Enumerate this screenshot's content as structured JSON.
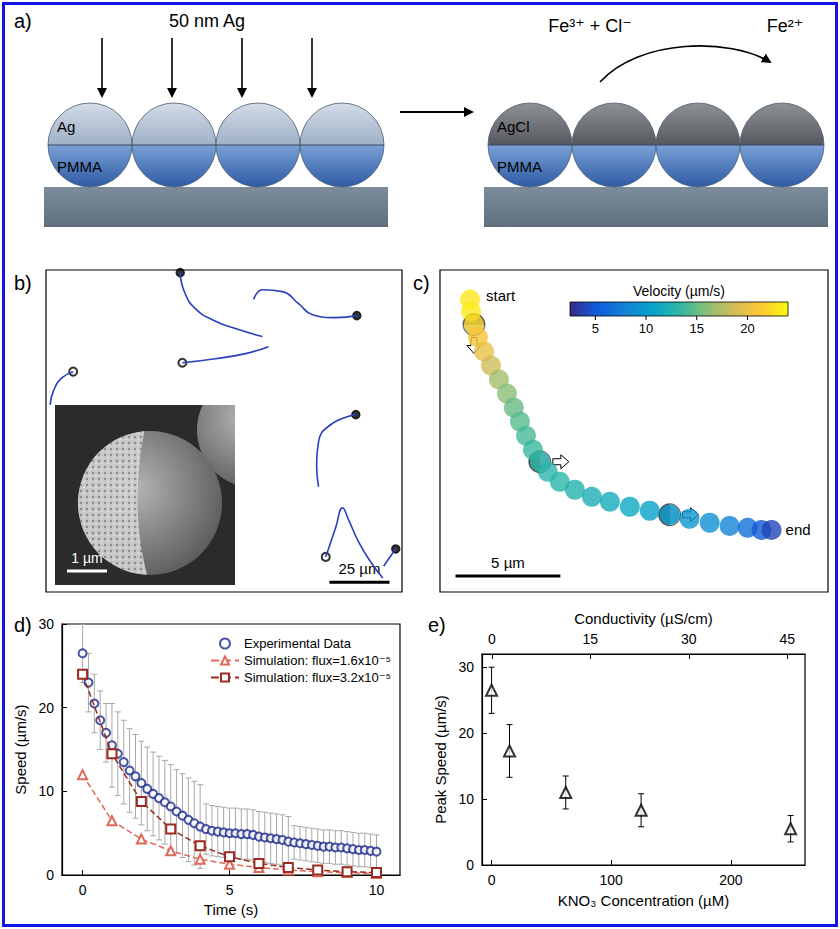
{
  "panel_a": {
    "letter": "a)",
    "deposition": "50 nm Ag",
    "before": {
      "cap": "Ag",
      "core": "PMMA"
    },
    "after": {
      "cap": "AgCl",
      "core": "PMMA"
    },
    "reaction": {
      "reactants": "Fe³⁺ + Cl⁻",
      "product": "Fe²⁺"
    }
  },
  "panel_b": {
    "letter": "b)",
    "xlim": [
      0,
      148
    ],
    "ylim": [
      0,
      134
    ],
    "tick_labels": false,
    "color": "#2a3fbf",
    "scale_bar": {
      "length": 25,
      "label": "25 µm"
    },
    "inset": {
      "scale_bar_label": "1 µm"
    },
    "trajectories": [
      {
        "marker": "filled",
        "points": [
          [
            90.0,
            106.3
          ],
          [
            80.0,
            109.2
          ],
          [
            70.0,
            112.9
          ],
          [
            62.1,
            117.9
          ],
          [
            57.5,
            125.0
          ],
          [
            55.8,
            132.9
          ]
        ]
      },
      {
        "marker": "open",
        "points": [
          [
            92.5,
            102.1
          ],
          [
            82.9,
            99.2
          ],
          [
            70.4,
            97.1
          ],
          [
            56.7,
            95.4
          ]
        ]
      },
      {
        "marker": "filled",
        "points": [
          [
            86.3,
            121.7
          ],
          [
            90.0,
            125.8
          ],
          [
            98.3,
            125.0
          ],
          [
            105.0,
            120.0
          ],
          [
            110.8,
            115.4
          ],
          [
            120.4,
            114.2
          ],
          [
            129.2,
            115.0
          ]
        ]
      },
      {
        "marker": "open",
        "points": [
          [
            1.7,
            77.9
          ],
          [
            3.3,
            84.2
          ],
          [
            6.7,
            89.2
          ],
          [
            11.3,
            91.7
          ]
        ]
      },
      {
        "marker": "filled",
        "points": [
          [
            113.3,
            43.8
          ],
          [
            112.5,
            52.9
          ],
          [
            113.3,
            62.5
          ],
          [
            118.3,
            69.6
          ],
          [
            128.8,
            73.8
          ]
        ]
      },
      {
        "marker": "open",
        "points": [
          [
            140.0,
            5.8
          ],
          [
            135.0,
            12.5
          ],
          [
            130.0,
            20.8
          ],
          [
            125.8,
            30.0
          ],
          [
            123.3,
            35.0
          ],
          [
            120.4,
            26.7
          ],
          [
            116.3,
            14.6
          ]
        ]
      },
      {
        "marker": "filled",
        "points": [
          [
            140.4,
            10.8
          ],
          [
            143.3,
            15.0
          ],
          [
            145.4,
            17.9
          ]
        ]
      }
    ]
  },
  "panel_c": {
    "letter": "c)",
    "xlim": [
      0,
      18.5
    ],
    "ylim": [
      0,
      15.3
    ],
    "tick_labels": false,
    "start_label": "start",
    "end_label": "end",
    "points": [
      [
        1.43,
        13.9
      ],
      [
        1.48,
        13.33
      ],
      [
        1.62,
        12.71
      ],
      [
        1.81,
        12.1
      ],
      [
        2.1,
        11.43
      ],
      [
        2.43,
        10.76
      ],
      [
        2.81,
        10.1
      ],
      [
        3.19,
        9.43
      ],
      [
        3.52,
        8.76
      ],
      [
        3.81,
        8.1
      ],
      [
        4.1,
        7.43
      ],
      [
        4.43,
        6.76
      ],
      [
        4.76,
        6.19
      ],
      [
        5.14,
        5.71
      ],
      [
        5.71,
        5.24
      ],
      [
        6.43,
        4.86
      ],
      [
        7.24,
        4.52
      ],
      [
        8.1,
        4.29
      ],
      [
        9.05,
        4.05
      ],
      [
        10.0,
        3.86
      ],
      [
        10.95,
        3.67
      ],
      [
        11.9,
        3.48
      ],
      [
        12.86,
        3.29
      ],
      [
        13.81,
        3.14
      ],
      [
        14.67,
        3.05
      ],
      [
        15.33,
        2.95
      ],
      [
        15.81,
        2.95
      ]
    ],
    "velocity": [
      23,
      23,
      22,
      21,
      20,
      18.5,
      17,
      16,
      15,
      14.5,
      14,
      13.5,
      13,
      13,
      13,
      12.5,
      12,
      11.5,
      11,
      10.5,
      10,
      9.5,
      9,
      8,
      6.5,
      5,
      4
    ],
    "colorbar": {
      "title": "Velocity (µm/s)",
      "range": [
        2.5,
        24
      ],
      "ticks": [
        5,
        10,
        15,
        20
      ]
    },
    "scale_bar": {
      "length": 5,
      "label": "5 µm"
    }
  },
  "chart_data": [
    {
      "type": "line",
      "title": "d)",
      "x_label": "Time (s)",
      "y_label": "Speed (µm/s)",
      "xlim": [
        -0.7,
        10.8
      ],
      "xticks": [
        0,
        5,
        10
      ],
      "ylim": [
        0,
        30
      ],
      "yticks": [
        0,
        10,
        20,
        30
      ],
      "grid": false,
      "legend": "top-right",
      "series": [
        {
          "name": "Experimental Data",
          "type": "scatter",
          "marker": "circle",
          "color": "#1c2a8c",
          "x": [
            0,
            0.2,
            0.4,
            0.6,
            0.8,
            1,
            1.2,
            1.4,
            1.6,
            1.8,
            2,
            2.2,
            2.4,
            2.6,
            2.8,
            3,
            3.2,
            3.4,
            3.6,
            3.8,
            4,
            4.2,
            4.4,
            4.6,
            4.8,
            5,
            5.2,
            5.4,
            5.6,
            5.8,
            6,
            6.2,
            6.4,
            6.6,
            6.8,
            7,
            7.2,
            7.4,
            7.6,
            7.8,
            8,
            8.2,
            8.4,
            8.6,
            8.8,
            9,
            9.2,
            9.4,
            9.6,
            9.8,
            10
          ],
          "values": [
            26.5,
            23,
            20.5,
            18.5,
            17,
            15.5,
            14.5,
            13.5,
            12.5,
            11.8,
            11,
            10.3,
            9.7,
            9.2,
            8.7,
            8.2,
            7.6,
            7.1,
            6.6,
            6.2,
            5.8,
            5.5,
            5.3,
            5.2,
            5.1,
            5.0,
            5.0,
            4.9,
            4.9,
            4.8,
            4.6,
            4.5,
            4.4,
            4.3,
            4.2,
            4.0,
            3.9,
            3.8,
            3.7,
            3.6,
            3.5,
            3.4,
            3.4,
            3.3,
            3.3,
            3.2,
            3.1,
            3.0,
            3.0,
            2.9,
            2.8
          ],
          "errors": [
            3.5,
            3.5,
            3.5,
            3.5,
            3.5,
            5,
            5,
            5,
            5,
            5,
            5,
            5,
            5,
            5,
            5,
            5,
            5,
            5,
            5,
            5,
            5,
            3,
            3,
            3,
            3,
            3,
            3,
            3,
            3,
            3,
            3,
            3,
            3,
            3,
            3,
            3,
            2,
            2,
            2,
            2,
            2,
            2,
            2,
            2,
            2,
            2,
            2,
            2,
            2,
            2,
            2
          ]
        },
        {
          "name": "Simulation: flux=1.6x10⁻⁵",
          "type": "line",
          "marker": "triangle",
          "line_style": "dashed",
          "color": "#e06a5a",
          "x": [
            0,
            1,
            2,
            3,
            4,
            5,
            6,
            7,
            8,
            9,
            10
          ],
          "values": [
            12,
            6.5,
            4.3,
            2.9,
            1.9,
            1.3,
            0.9,
            0.6,
            0.4,
            0.3,
            0.2
          ]
        },
        {
          "name": "Simulation: flux=3.2x10⁻⁵",
          "type": "line",
          "marker": "square",
          "line_style": "dashed",
          "color": "#9b2a20",
          "x": [
            0,
            1,
            2,
            3,
            4,
            5,
            6,
            7,
            8,
            9,
            10
          ],
          "values": [
            24,
            14.5,
            8.8,
            5.5,
            3.5,
            2.2,
            1.4,
            0.9,
            0.6,
            0.4,
            0.3
          ]
        }
      ]
    },
    {
      "type": "scatter",
      "title": "e)",
      "x_label": "KNO₃ Concentration (µM)",
      "x2_label": "Conductivity (µS/cm)",
      "y_label": "Peak Speed (µm/s)",
      "xlim": [
        -8,
        262
      ],
      "xticks": [
        0,
        100,
        200
      ],
      "x2lim": [
        -1.5,
        47.7
      ],
      "x2ticks": [
        0,
        15,
        30,
        45
      ],
      "ylim": [
        0,
        32
      ],
      "yticks": [
        0,
        10,
        20,
        30
      ],
      "grid": false,
      "marker": "triangle",
      "color": "#000000",
      "x": [
        0,
        15,
        62,
        125,
        250
      ],
      "values": [
        26.5,
        17.3,
        11,
        8.3,
        5.5
      ],
      "errors": [
        3.5,
        4,
        2.5,
        2.5,
        2
      ]
    }
  ]
}
